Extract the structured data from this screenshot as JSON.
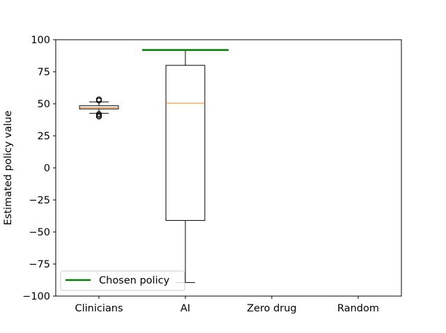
{
  "chart_data": {
    "type": "box",
    "ylabel": "Estimated policy value",
    "xlabel": "",
    "ylim": [
      -100,
      100
    ],
    "yticks": [
      -100,
      -75,
      -50,
      -25,
      0,
      25,
      50,
      75,
      100
    ],
    "ytick_labels": [
      "−100",
      "−75",
      "−50",
      "−25",
      "0",
      "25",
      "50",
      "75",
      "100"
    ],
    "categories": [
      "Clinicians",
      "AI",
      "Zero drug",
      "Random"
    ],
    "boxes": [
      {
        "category": "Clinicians",
        "whisker_low": 42.5,
        "q1": 46,
        "median": 47,
        "q3": 48.5,
        "whisker_high": 51.5,
        "outliers": [
          40,
          41,
          42,
          52.5,
          53.5
        ]
      },
      {
        "category": "AI",
        "whisker_low": -89.5,
        "q1": -41,
        "median": 50.5,
        "q3": 80,
        "whisker_high": 92,
        "outliers": []
      },
      {
        "category": "Zero drug",
        "whisker_low": null,
        "q1": null,
        "median": null,
        "q3": null,
        "whisker_high": null,
        "outliers": []
      },
      {
        "category": "Random",
        "whisker_low": null,
        "q1": null,
        "median": null,
        "q3": null,
        "whisker_high": null,
        "outliers": []
      }
    ],
    "reference_lines": [
      {
        "name": "Chosen policy",
        "category": "AI",
        "value": 92,
        "color": "#008000"
      }
    ],
    "legend": {
      "placement": "lower-left",
      "entries": [
        "Chosen policy"
      ]
    },
    "grid": false,
    "colors": {
      "box": "#000000",
      "median": "#ff7f0e",
      "chosen": "#008000"
    }
  }
}
